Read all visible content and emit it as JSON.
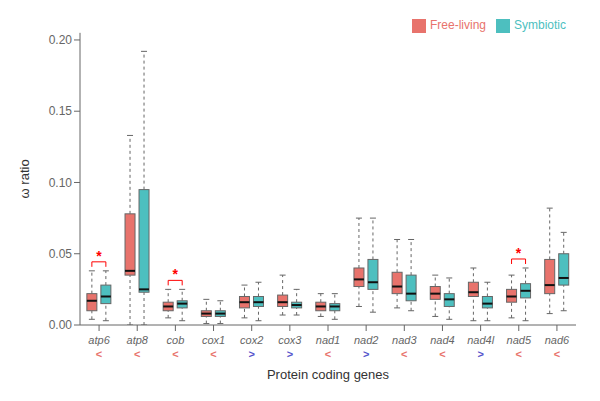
{
  "chart_data": {
    "type": "box",
    "xlabel": "Protein coding genes",
    "ylabel": "ω ratio",
    "categories": [
      "atp6",
      "atp8",
      "cob",
      "cox1",
      "cox2",
      "cox3",
      "nad1",
      "nad2",
      "nad3",
      "nad4",
      "nad4l",
      "nad5",
      "nad6"
    ],
    "series": [
      {
        "name": "Free-living",
        "color": "#E8736C",
        "whislo": [
          0.004,
          0.0,
          0.005,
          0.001,
          0.005,
          0.007,
          0.006,
          0.013,
          0.012,
          0.006,
          0.003,
          0.005,
          0.008
        ],
        "q1": [
          0.01,
          0.035,
          0.01,
          0.006,
          0.012,
          0.013,
          0.01,
          0.027,
          0.022,
          0.018,
          0.02,
          0.016,
          0.022
        ],
        "med": [
          0.017,
          0.038,
          0.013,
          0.008,
          0.016,
          0.016,
          0.013,
          0.032,
          0.027,
          0.022,
          0.023,
          0.02,
          0.028
        ],
        "q3": [
          0.022,
          0.078,
          0.016,
          0.01,
          0.02,
          0.021,
          0.016,
          0.04,
          0.037,
          0.027,
          0.03,
          0.025,
          0.046
        ],
        "whishi": [
          0.038,
          0.133,
          0.025,
          0.018,
          0.028,
          0.035,
          0.022,
          0.075,
          0.06,
          0.035,
          0.04,
          0.035,
          0.082
        ]
      },
      {
        "name": "Symbiotic",
        "color": "#4DBFBF",
        "whislo": [
          0.003,
          0.0,
          0.003,
          0.001,
          0.003,
          0.007,
          0.004,
          0.009,
          0.01,
          0.004,
          0.003,
          0.003,
          0.01
        ],
        "q1": [
          0.015,
          0.023,
          0.012,
          0.006,
          0.013,
          0.012,
          0.01,
          0.025,
          0.017,
          0.013,
          0.012,
          0.019,
          0.028
        ],
        "med": [
          0.02,
          0.025,
          0.015,
          0.008,
          0.016,
          0.014,
          0.013,
          0.03,
          0.022,
          0.018,
          0.015,
          0.024,
          0.033
        ],
        "q3": [
          0.028,
          0.095,
          0.017,
          0.01,
          0.02,
          0.016,
          0.015,
          0.046,
          0.035,
          0.022,
          0.02,
          0.029,
          0.05
        ],
        "whishi": [
          0.038,
          0.192,
          0.025,
          0.017,
          0.03,
          0.025,
          0.022,
          0.075,
          0.06,
          0.033,
          0.03,
          0.04,
          0.065
        ]
      }
    ],
    "ylim": [
      0.0,
      0.205
    ],
    "yticks": [
      {
        "value": 0.0,
        "label": "0.00"
      },
      {
        "value": 0.05,
        "label": "0.05"
      },
      {
        "value": 0.1,
        "label": "0.10"
      },
      {
        "value": 0.15,
        "label": "0.15"
      },
      {
        "value": 0.2,
        "label": "0.20"
      }
    ],
    "annotations": [
      {
        "category": "atp6",
        "text": "*",
        "color": "red"
      },
      {
        "category": "cob",
        "text": "*",
        "color": "red"
      },
      {
        "category": "nad5",
        "text": "*",
        "color": "red"
      }
    ],
    "symbols": [
      {
        "category": "atp6",
        "text": "<",
        "color": "#E8736C"
      },
      {
        "category": "atp8",
        "text": "<",
        "color": "#E8736C"
      },
      {
        "category": "cob",
        "text": "<",
        "color": "#E8736C"
      },
      {
        "category": "cox1",
        "text": "<",
        "color": "#E8736C"
      },
      {
        "category": "cox2",
        "text": ">",
        "color": "#5555CC"
      },
      {
        "category": "cox3",
        "text": ">",
        "color": "#5555CC"
      },
      {
        "category": "nad1",
        "text": "<",
        "color": "#E8736C"
      },
      {
        "category": "nad2",
        "text": ">",
        "color": "#5555CC"
      },
      {
        "category": "nad3",
        "text": "<",
        "color": "#E8736C"
      },
      {
        "category": "nad4",
        "text": "<",
        "color": "#E8736C"
      },
      {
        "category": "nad4l",
        "text": ">",
        "color": "#5555CC"
      },
      {
        "category": "nad5",
        "text": "<",
        "color": "#E8736C"
      },
      {
        "category": "nad6",
        "text": "<",
        "color": "#E8736C"
      }
    ],
    "grid": false,
    "legend": "upper right"
  }
}
